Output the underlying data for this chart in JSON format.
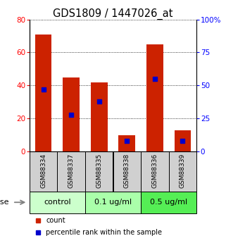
{
  "title": "GDS1809 / 1447026_at",
  "samples": [
    "GSM88334",
    "GSM88337",
    "GSM88335",
    "GSM88338",
    "GSM88336",
    "GSM88339"
  ],
  "bar_heights": [
    71,
    45,
    42,
    10,
    65,
    13
  ],
  "percentile_values": [
    47,
    28,
    38,
    8,
    55,
    8
  ],
  "bar_color": "#cc2200",
  "percentile_color": "#0000cc",
  "ylim_left": [
    0,
    80
  ],
  "ylim_right": [
    0,
    100
  ],
  "yticks_left": [
    0,
    20,
    40,
    60,
    80
  ],
  "yticks_right": [
    0,
    25,
    50,
    75,
    100
  ],
  "yticklabels_right": [
    "0",
    "25",
    "50",
    "75",
    "100%"
  ],
  "groups": [
    {
      "label": "control",
      "indices": [
        0,
        1
      ],
      "color": "#ccffcc"
    },
    {
      "label": "0.1 ug/ml",
      "indices": [
        2,
        3
      ],
      "color": "#aaffaa"
    },
    {
      "label": "0.5 ug/ml",
      "indices": [
        4,
        5
      ],
      "color": "#55ee55"
    }
  ],
  "dose_label": "dose",
  "legend_count_label": "count",
  "legend_percentile_label": "percentile rank within the sample",
  "background_color": "#ffffff",
  "sample_box_color": "#d0d0d0",
  "title_fontsize": 10.5,
  "tick_fontsize": 7.5,
  "sample_fontsize": 6.5,
  "group_fontsize": 8,
  "legend_fontsize": 7
}
